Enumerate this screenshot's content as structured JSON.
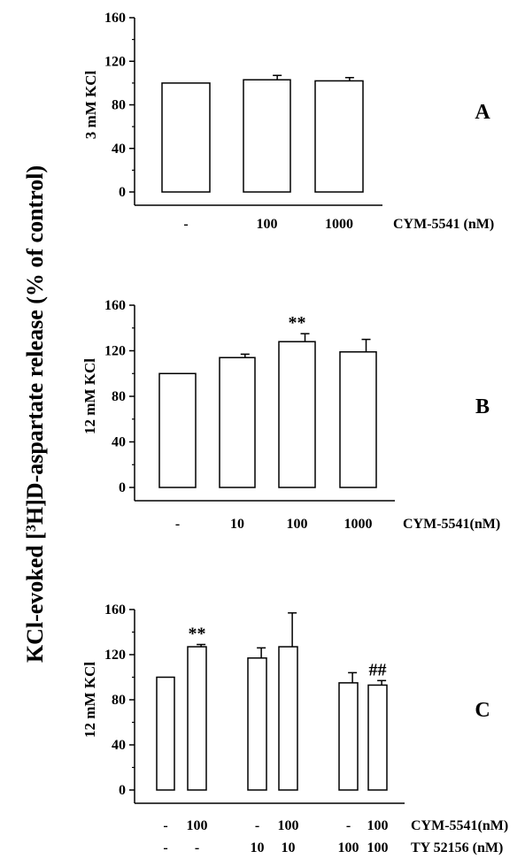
{
  "figure": {
    "shared_ylabel_pre": "KCl-evoked [",
    "shared_ylabel_sup": "3",
    "shared_ylabel_post": "H]D-aspartate release (% of control)"
  },
  "chart_data": [
    {
      "type": "bar",
      "panel": "A",
      "ylabel": "3 mM KCl",
      "ylim": [
        0,
        160
      ],
      "yticks": [
        "0",
        "40",
        "80",
        "120",
        "160"
      ],
      "categories": [
        "-",
        "100",
        "1000"
      ],
      "category_rows": [
        {
          "label": "CYM-5541 (nM)",
          "values": [
            "-",
            "100",
            "1000"
          ]
        }
      ],
      "values": [
        100,
        103,
        102
      ],
      "errors": [
        0,
        4,
        3
      ],
      "annotations": [
        "",
        "",
        ""
      ]
    },
    {
      "type": "bar",
      "panel": "B",
      "ylabel": "12 mM KCl",
      "ylim": [
        0,
        160
      ],
      "yticks": [
        "0",
        "40",
        "80",
        "120",
        "160"
      ],
      "categories": [
        "-",
        "10",
        "100",
        "1000"
      ],
      "category_rows": [
        {
          "label": "CYM-5541(nM)",
          "values": [
            "-",
            "10",
            "100",
            "1000"
          ]
        }
      ],
      "values": [
        100,
        114,
        128,
        119
      ],
      "errors": [
        0,
        3,
        7,
        11
      ],
      "annotations": [
        "",
        "",
        "**",
        ""
      ]
    },
    {
      "type": "bar",
      "panel": "C",
      "ylabel": "12 mM KCl",
      "ylim": [
        0,
        160
      ],
      "yticks": [
        "0",
        "40",
        "80",
        "120",
        "160"
      ],
      "categories": [
        "- / -",
        "100 / -",
        "- / 10",
        "100 / 10",
        "- / 100",
        "100 / 100"
      ],
      "category_rows": [
        {
          "label": "CYM-5541(nM)",
          "values": [
            "-",
            "100",
            "-",
            "100",
            "-",
            "100"
          ]
        },
        {
          "label": "TY 52156 (nM)",
          "values": [
            "-",
            "-",
            "10",
            "10",
            "100",
            "100"
          ]
        }
      ],
      "values": [
        100,
        127,
        117,
        127,
        95,
        93
      ],
      "errors": [
        0,
        2,
        9,
        30,
        9,
        4
      ],
      "annotations": [
        "",
        "**",
        "",
        "",
        "",
        "##"
      ]
    }
  ]
}
